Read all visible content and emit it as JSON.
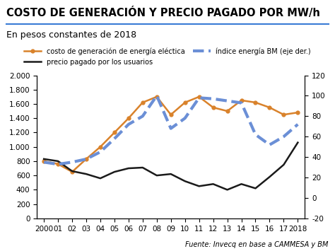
{
  "chart_data": {
    "type": "line",
    "title": "COSTO DE GENERACIÓN Y PRECIO PAGADO POR MW/h",
    "subtitle": "En pesos constantes de 2018",
    "source": "Fuente: Invecq en base a CAMMESA y BM",
    "categories": [
      "2000",
      "01",
      "02",
      "03",
      "04",
      "05",
      "06",
      "07",
      "08",
      "09",
      "10",
      "11",
      "12",
      "13",
      "14",
      "15",
      "16",
      "17",
      "2018"
    ],
    "series": [
      {
        "name": "costo de generación de energía eléctica",
        "color": "#d9822b",
        "marker": "circle",
        "line_style": "solid",
        "values": [
          800,
          760,
          650,
          830,
          1000,
          1200,
          1400,
          1620,
          1700,
          1450,
          1620,
          1700,
          1550,
          1500,
          1650,
          1620,
          1550,
          1450,
          1480
        ]
      },
      {
        "name": "precio pagado por los usuarios",
        "color": "#1a1a1a",
        "line_style": "solid",
        "values": [
          830,
          800,
          660,
          620,
          560,
          650,
          700,
          710,
          600,
          620,
          520,
          450,
          480,
          400,
          480,
          420,
          580,
          750,
          1060
        ]
      },
      {
        "name": "índice energía BM (eje der.)",
        "color": "#6b8fd6",
        "line_style": "dashed",
        "axis": "y2",
        "values": [
          35,
          33,
          35,
          38,
          45,
          58,
          72,
          80,
          100,
          68,
          78,
          98,
          97,
          95,
          93,
          62,
          52,
          60,
          72
        ]
      }
    ],
    "ylim": [
      0,
      2000
    ],
    "yticks": [
      0,
      200,
      400,
      600,
      800,
      {
        "value": 1000,
        "label": "1.000"
      },
      {
        "value": 1200,
        "label": "1.200"
      },
      {
        "value": 1400,
        "label": "1.400"
      },
      {
        "value": 1600,
        "label": "1.600"
      },
      {
        "value": 1800,
        "label": "1.800"
      },
      {
        "value": 2000,
        "label": "2.000"
      }
    ],
    "y2lim": [
      -20,
      120
    ],
    "y2ticks": [
      -20,
      0,
      20,
      40,
      60,
      80,
      100,
      120
    ],
    "grid": false,
    "legend": "upper center"
  }
}
